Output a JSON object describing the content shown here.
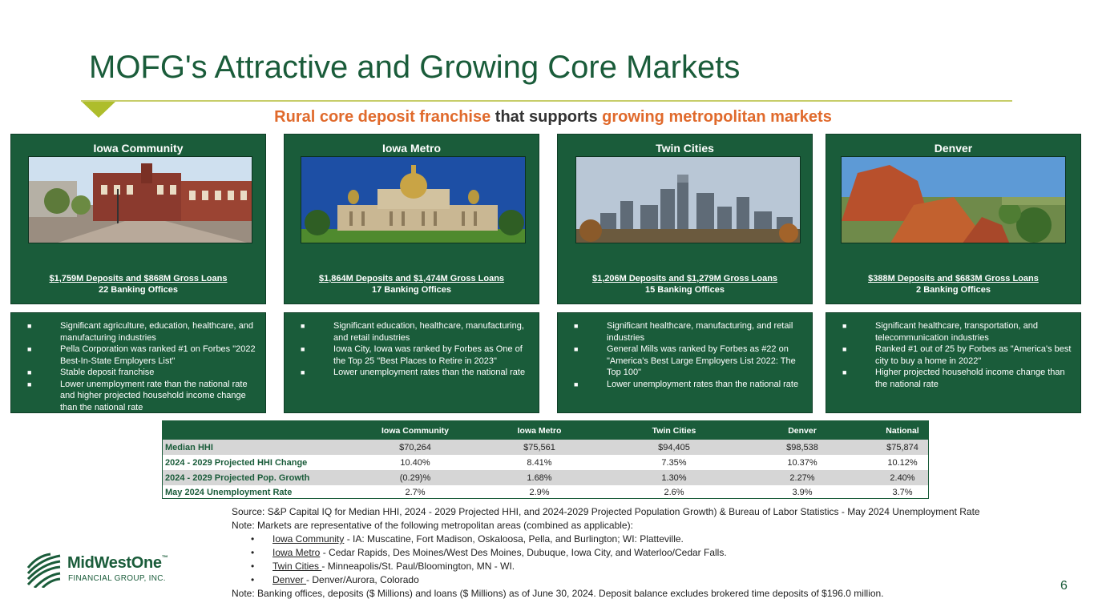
{
  "slide": {
    "title": "MOFG's Attractive and Growing Core Markets",
    "subtitle": {
      "part1": "Rural core deposit franchise",
      "part2": " that supports ",
      "part3": "growing metropolitan markets"
    },
    "page_number": "6"
  },
  "markets": [
    {
      "name": "Iowa Community",
      "photo": "town-square-photo",
      "deposits_loans": "$1,759M Deposits and $868M Gross Loans",
      "offices": "22 Banking Offices",
      "bullets": [
        "Significant agriculture, education, healthcare, and manufacturing industries",
        "Pella Corporation was ranked #1 on Forbes \"2022 Best-In-State Employers List\"",
        "Stable deposit franchise",
        "Lower unemployment rate than the national rate and higher projected household income change than the national rate"
      ]
    },
    {
      "name": "Iowa Metro",
      "photo": "state-capitol-photo",
      "deposits_loans": "$1,864M Deposits and $1,474M Gross Loans",
      "offices": "17 Banking Offices",
      "bullets": [
        "Significant education, healthcare, manufacturing, and retail industries",
        "Iowa City, Iowa was ranked by Forbes as One of the Top 25 \"Best Places to Retire in 2023\"",
        "Lower unemployment rates than the national rate"
      ]
    },
    {
      "name": "Twin Cities",
      "photo": "city-skyline-photo",
      "deposits_loans": "$1,206M Deposits and $1,279M Gross Loans",
      "offices": "15 Banking Offices",
      "bullets": [
        "Significant healthcare, manufacturing, and retail industries",
        "General Mills was ranked by Forbes as #22 on \"America's Best Large Employers List 2022: The Top 100\"",
        "Lower unemployment rates than the national rate"
      ]
    },
    {
      "name": "Denver",
      "photo": "red-rocks-photo",
      "deposits_loans": "$388M Deposits and $683M Gross Loans",
      "offices": "2 Banking Offices",
      "bullets": [
        "Significant healthcare, transportation, and telecommunication industries",
        "Ranked #1 out of 25 by Forbes as \"America's best city to buy a home in 2022\"",
        "Higher projected household income change than the national rate"
      ]
    }
  ],
  "table": {
    "headers": [
      "",
      "Iowa Community",
      "Iowa Metro",
      "Twin Cities",
      "Denver",
      "National"
    ],
    "rows": [
      {
        "label": "Median HHI",
        "values": [
          "$70,264",
          "$75,561",
          "$94,405",
          "$98,538",
          "$75,874"
        ]
      },
      {
        "label": "2024 - 2029 Projected HHI Change",
        "values": [
          "10.40%",
          "8.41%",
          "7.35%",
          "10.37%",
          "10.12%"
        ]
      },
      {
        "label": "2024 - 2029 Projected Pop. Growth",
        "values": [
          "(0.29)%",
          "1.68%",
          "1.30%",
          "2.27%",
          "2.40%"
        ]
      },
      {
        "label": "May 2024 Unemployment Rate",
        "values": [
          "2.7%",
          "2.9%",
          "2.6%",
          "3.9%",
          "3.7%"
        ]
      }
    ]
  },
  "notes": {
    "source": "Source: S&P Capital IQ for Median HHI, 2024 - 2029 Projected HHI, and 2024-2029 Projected Population Growth) & Bureau of Labor Statistics - May 2024 Unemployment Rate",
    "markets_note": "Note: Markets are representative of the following metropolitan areas (combined as applicable):",
    "items": [
      {
        "name": "Iowa Community",
        "desc": " - IA: Muscatine, Fort Madison, Oskaloosa, Pella, and Burlington; WI: Platteville."
      },
      {
        "name": "Iowa Metro",
        "desc": " - Cedar Rapids, Des Moines/West Des Moines, Dubuque, Iowa City, and Waterloo/Cedar Falls."
      },
      {
        "name": "Twin Cities ",
        "desc": "- Minneapolis/St. Paul/Bloomington, MN - WI."
      },
      {
        "name": "Denver ",
        "desc": "- Denver/Aurora, Colorado"
      }
    ],
    "banking_note": "Note: Banking offices, deposits ($ Millions) and loans ($ Millions) as of June 30, 2024. Deposit balance excludes brokered time deposits of $196.0 million."
  },
  "logo": {
    "brand": "MidWestOne",
    "tm": "™",
    "sub": "FINANCIAL GROUP, INC."
  }
}
